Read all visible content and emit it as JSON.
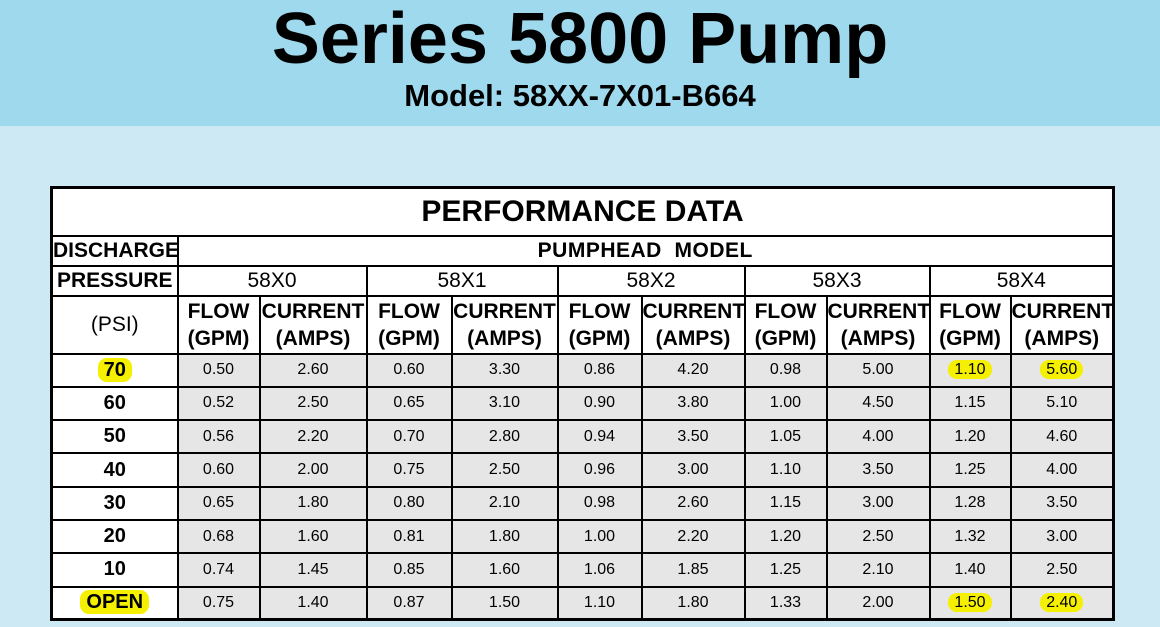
{
  "header": {
    "title": "Series 5800 Pump",
    "subtitle": "Model: 58XX-7X01-B664"
  },
  "table": {
    "title": "PERFORMANCE DATA",
    "row_label_top": "DISCHARGE",
    "row_label_mid": "PRESSURE",
    "row_label_unit": "(PSI)",
    "group_header": "PUMPHEAD  MODEL",
    "models": [
      "58X0",
      "58X1",
      "58X2",
      "58X3",
      "58X4"
    ],
    "flow_label": "FLOW",
    "flow_unit": "(GPM)",
    "current_label": "CURRENT",
    "current_unit": "(AMPS)",
    "rows": [
      {
        "psi": "70",
        "v": [
          "0.50",
          "2.60",
          "0.60",
          "3.30",
          "0.86",
          "4.20",
          "0.98",
          "5.00",
          "1.10",
          "5.60"
        ]
      },
      {
        "psi": "60",
        "v": [
          "0.52",
          "2.50",
          "0.65",
          "3.10",
          "0.90",
          "3.80",
          "1.00",
          "4.50",
          "1.15",
          "5.10"
        ]
      },
      {
        "psi": "50",
        "v": [
          "0.56",
          "2.20",
          "0.70",
          "2.80",
          "0.94",
          "3.50",
          "1.05",
          "4.00",
          "1.20",
          "4.60"
        ]
      },
      {
        "psi": "40",
        "v": [
          "0.60",
          "2.00",
          "0.75",
          "2.50",
          "0.96",
          "3.00",
          "1.10",
          "3.50",
          "1.25",
          "4.00"
        ]
      },
      {
        "psi": "30",
        "v": [
          "0.65",
          "1.80",
          "0.80",
          "2.10",
          "0.98",
          "2.60",
          "1.15",
          "3.00",
          "1.28",
          "3.50"
        ]
      },
      {
        "psi": "20",
        "v": [
          "0.68",
          "1.60",
          "0.81",
          "1.80",
          "1.00",
          "2.20",
          "1.20",
          "2.50",
          "1.32",
          "3.00"
        ]
      },
      {
        "psi": "10",
        "v": [
          "0.74",
          "1.45",
          "0.85",
          "1.60",
          "1.06",
          "1.85",
          "1.25",
          "2.10",
          "1.40",
          "2.50"
        ]
      },
      {
        "psi": "OPEN",
        "v": [
          "0.75",
          "1.40",
          "0.87",
          "1.50",
          "1.10",
          "1.80",
          "1.33",
          "2.00",
          "1.50",
          "2.40"
        ]
      }
    ],
    "highlight_color": "#f5f000"
  }
}
